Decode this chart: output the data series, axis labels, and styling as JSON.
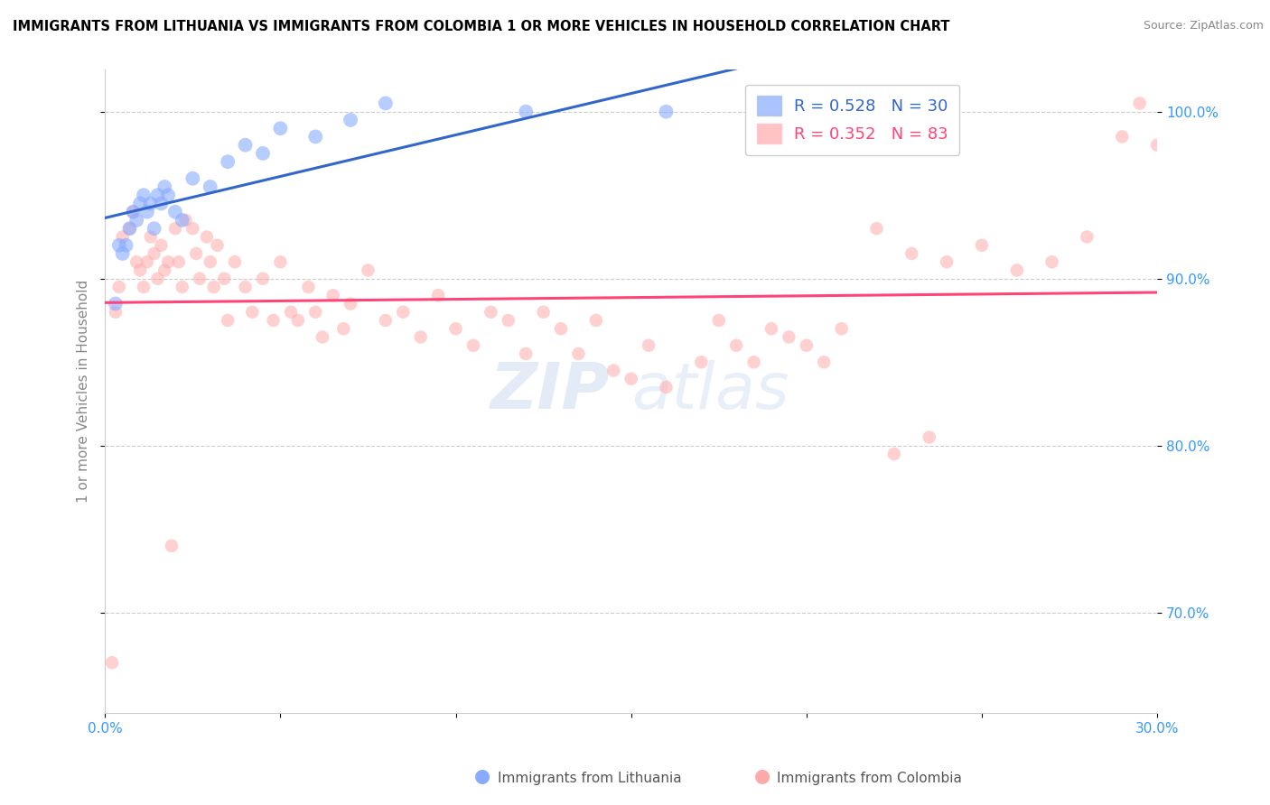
{
  "title": "IMMIGRANTS FROM LITHUANIA VS IMMIGRANTS FROM COLOMBIA 1 OR MORE VEHICLES IN HOUSEHOLD CORRELATION CHART",
  "source": "Source: ZipAtlas.com",
  "ylabel": "1 or more Vehicles in Household",
  "x_min": 0.0,
  "x_max": 30.0,
  "y_min": 64.0,
  "y_max": 102.5,
  "y_ticks": [
    70.0,
    80.0,
    90.0,
    100.0
  ],
  "y_tick_labels": [
    "70.0%",
    "80.0%",
    "90.0%",
    "100.0%"
  ],
  "x_ticks": [
    0.0,
    5.0,
    10.0,
    15.0,
    20.0,
    25.0,
    30.0
  ],
  "x_tick_labels": [
    "0.0%",
    "",
    "",
    "",
    "",
    "",
    "30.0%"
  ],
  "lithuania_color": "#88aaff",
  "colombia_color": "#ffaaaa",
  "lithuania_line_color": "#3366cc",
  "colombia_line_color": "#ff4477",
  "background_color": "#ffffff",
  "grid_color": "#cccccc",
  "R_lithuania": 0.528,
  "N_lithuania": 30,
  "R_colombia": 0.352,
  "N_colombia": 83,
  "lithuania_x": [
    0.3,
    0.4,
    0.5,
    0.6,
    0.7,
    0.8,
    0.9,
    1.0,
    1.1,
    1.2,
    1.3,
    1.4,
    1.5,
    1.6,
    1.7,
    1.8,
    2.0,
    2.2,
    2.5,
    3.0,
    3.5,
    4.0,
    4.5,
    5.0,
    6.0,
    7.0,
    8.0,
    12.0,
    16.0,
    21.0
  ],
  "lithuania_y": [
    88.5,
    92.0,
    91.5,
    92.0,
    93.0,
    94.0,
    93.5,
    94.5,
    95.0,
    94.0,
    94.5,
    93.0,
    95.0,
    94.5,
    95.5,
    95.0,
    94.0,
    93.5,
    96.0,
    95.5,
    97.0,
    98.0,
    97.5,
    99.0,
    98.5,
    99.5,
    100.5,
    100.0,
    100.0,
    101.0
  ],
  "colombia_x": [
    0.2,
    0.3,
    0.5,
    0.7,
    0.8,
    0.9,
    1.0,
    1.1,
    1.2,
    1.3,
    1.4,
    1.5,
    1.6,
    1.7,
    1.8,
    2.0,
    2.1,
    2.2,
    2.3,
    2.5,
    2.6,
    2.7,
    2.9,
    3.0,
    3.1,
    3.2,
    3.4,
    3.5,
    3.7,
    4.0,
    4.2,
    4.5,
    4.8,
    5.0,
    5.3,
    5.5,
    5.8,
    6.0,
    6.2,
    6.5,
    6.8,
    7.0,
    7.5,
    8.0,
    8.5,
    9.0,
    9.5,
    10.0,
    10.5,
    11.0,
    11.5,
    12.0,
    12.5,
    13.0,
    13.5,
    14.0,
    14.5,
    15.0,
    15.5,
    16.0,
    17.0,
    17.5,
    18.0,
    18.5,
    19.0,
    19.5,
    20.0,
    20.5,
    21.0,
    22.0,
    23.0,
    24.0,
    25.0,
    26.0,
    27.0,
    28.0,
    29.0,
    29.5,
    30.0,
    22.5,
    23.5,
    0.4,
    1.9
  ],
  "colombia_y": [
    67.0,
    88.0,
    92.5,
    93.0,
    94.0,
    91.0,
    90.5,
    89.5,
    91.0,
    92.5,
    91.5,
    90.0,
    92.0,
    90.5,
    91.0,
    93.0,
    91.0,
    89.5,
    93.5,
    93.0,
    91.5,
    90.0,
    92.5,
    91.0,
    89.5,
    92.0,
    90.0,
    87.5,
    91.0,
    89.5,
    88.0,
    90.0,
    87.5,
    91.0,
    88.0,
    87.5,
    89.5,
    88.0,
    86.5,
    89.0,
    87.0,
    88.5,
    90.5,
    87.5,
    88.0,
    86.5,
    89.0,
    87.0,
    86.0,
    88.0,
    87.5,
    85.5,
    88.0,
    87.0,
    85.5,
    87.5,
    84.5,
    84.0,
    86.0,
    83.5,
    85.0,
    87.5,
    86.0,
    85.0,
    87.0,
    86.5,
    86.0,
    85.0,
    87.0,
    93.0,
    91.5,
    91.0,
    92.0,
    90.5,
    91.0,
    92.5,
    98.5,
    100.5,
    98.0,
    79.5,
    80.5,
    89.5,
    74.0
  ]
}
